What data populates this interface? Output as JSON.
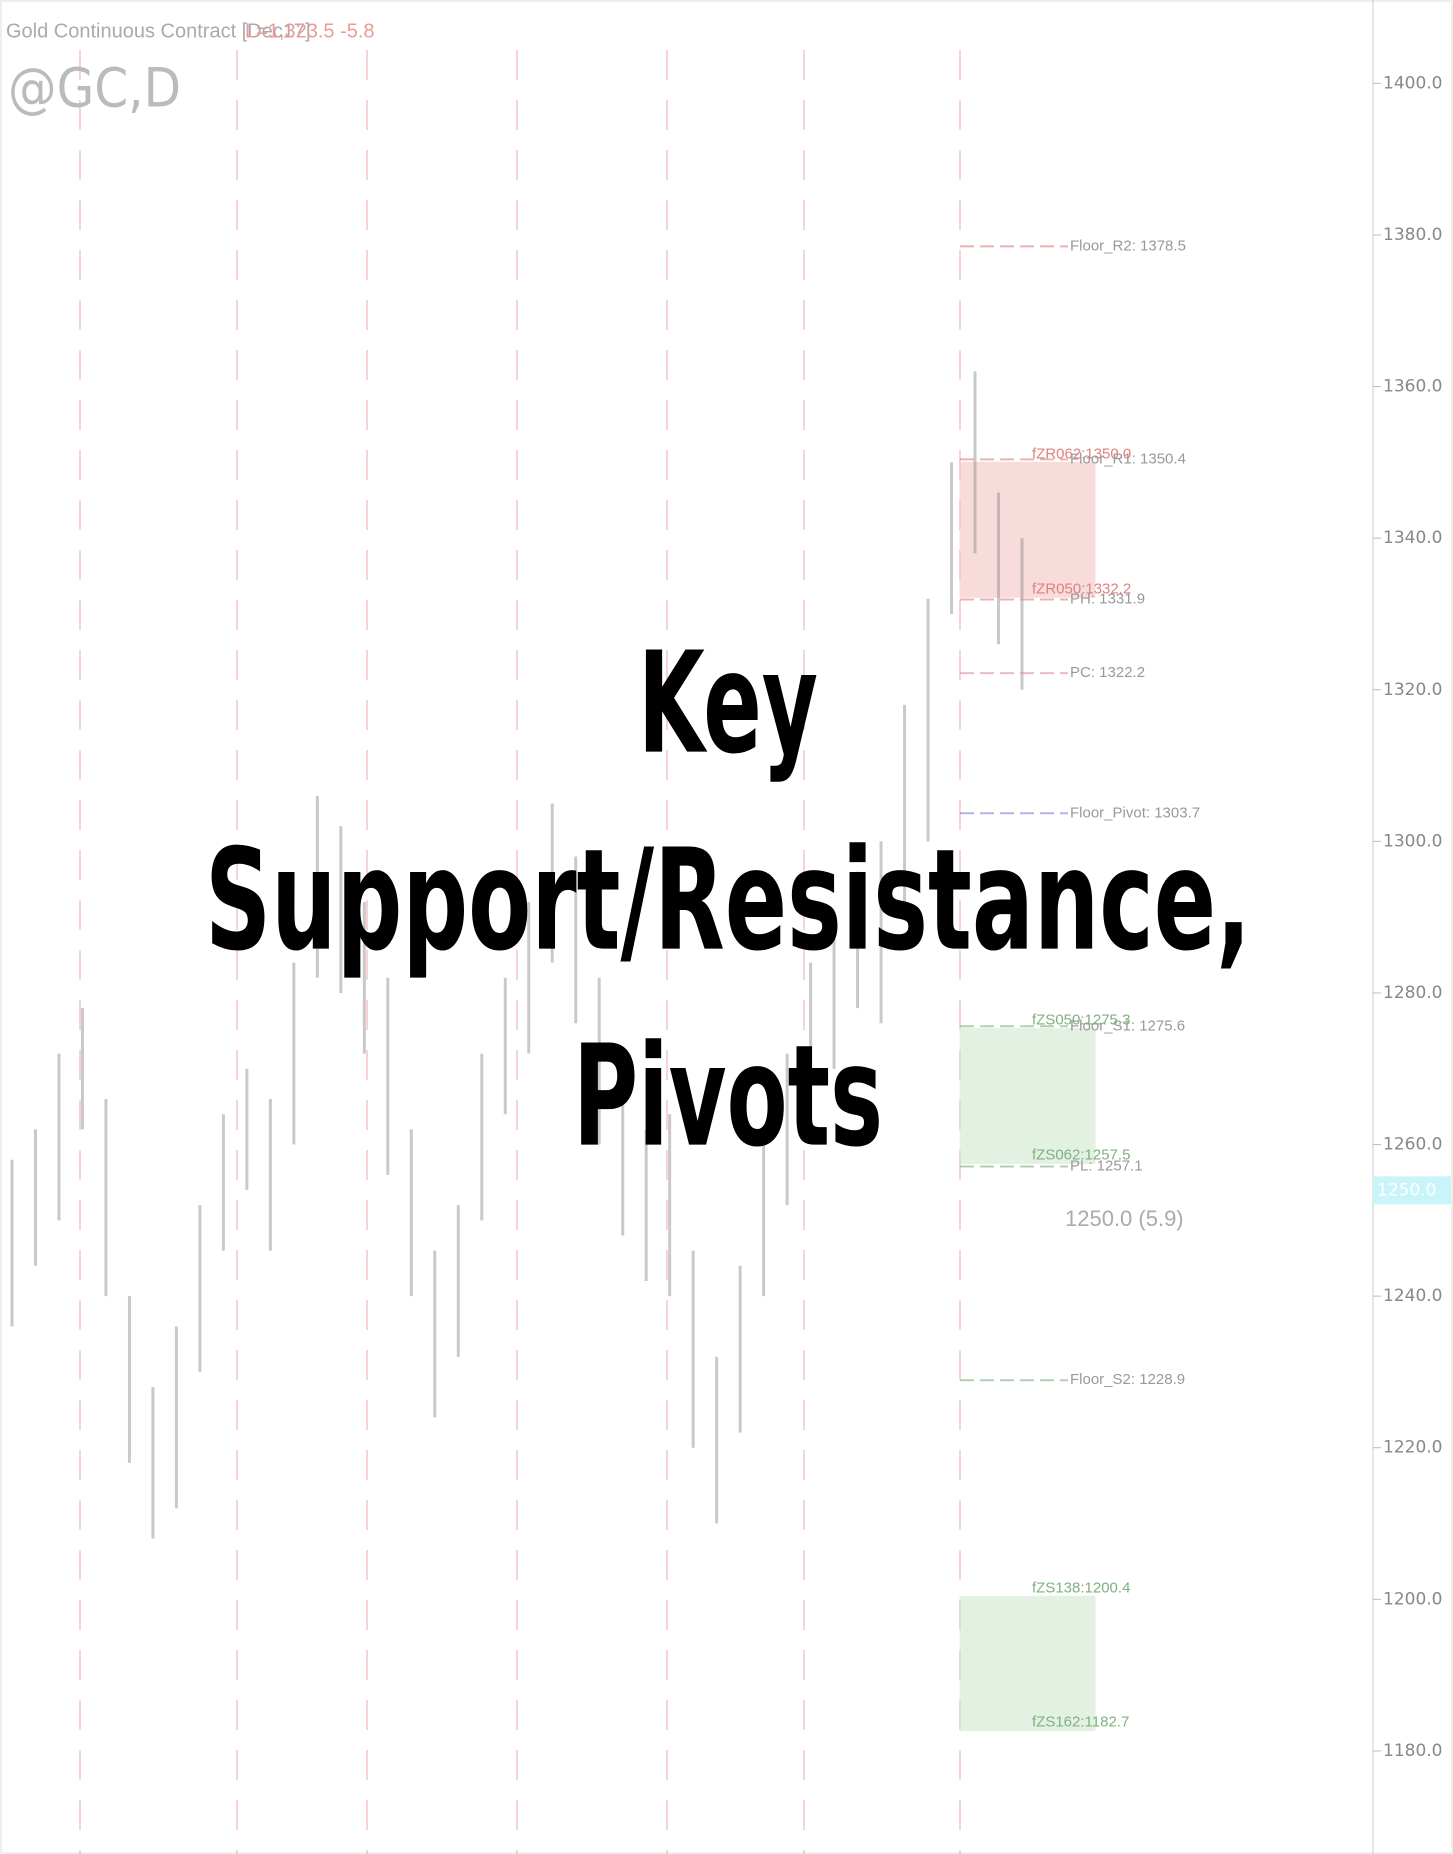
{
  "chart_data": {
    "type": "ohlc",
    "title_lines": [
      "Key",
      "Support/Resistance,",
      "Pivots"
    ],
    "header": "Gold Continuous Contract [Dec17]",
    "last_quote": "L=1,323.5  -5.8",
    "symbol": "@GC,D",
    "price_tag": "1250.0",
    "ylim": [
      1166.4,
      1411
    ],
    "yticks": [
      {
        "value": 1180,
        "label": "1180.0"
      },
      {
        "value": 1200,
        "label": "1200.0"
      },
      {
        "value": 1220,
        "label": "1220.0"
      },
      {
        "value": 1240,
        "label": "1240.0"
      },
      {
        "value": 1260,
        "label": "1260.0"
      },
      {
        "value": 1280,
        "label": "1280.0"
      },
      {
        "value": 1300,
        "label": "1300.0"
      },
      {
        "value": 1320,
        "label": "1320.0"
      },
      {
        "value": 1340,
        "label": "1340.0"
      },
      {
        "value": 1360,
        "label": "1360.0"
      },
      {
        "value": 1380,
        "label": "1380.0"
      },
      {
        "value": 1400,
        "label": "1400.0"
      }
    ],
    "bar_color": "#888888",
    "high": [
      1258,
      1262,
      1272,
      1278,
      1266,
      1240,
      1228,
      1236,
      1252,
      1264,
      1270,
      1266,
      1284,
      1306,
      1302,
      1292,
      1282,
      1262,
      1246,
      1252,
      1272,
      1282,
      1292,
      1305,
      1298,
      1282,
      1268,
      1262,
      1264,
      1246,
      1232,
      1244,
      1262,
      1272,
      1284,
      1290,
      1296,
      1300,
      1318,
      1332,
      1350,
      1362,
      1346,
      1340
    ],
    "low": [
      1236,
      1244,
      1250,
      1262,
      1240,
      1218,
      1208,
      1212,
      1230,
      1246,
      1254,
      1246,
      1260,
      1282,
      1280,
      1272,
      1256,
      1240,
      1224,
      1232,
      1250,
      1264,
      1272,
      1284,
      1276,
      1260,
      1248,
      1242,
      1240,
      1220,
      1210,
      1222,
      1240,
      1252,
      1264,
      1270,
      1278,
      1276,
      1292,
      1300,
      1330,
      1338,
      1326,
      1320
    ],
    "zones": [
      {
        "from": 1332.2,
        "to": 1350.0,
        "color": "#f5c6c6"
      },
      {
        "from": 1257.5,
        "to": 1275.3,
        "color": "#cfe8cf"
      },
      {
        "from": 1182.7,
        "to": 1200.4,
        "color": "#cfe8cf"
      }
    ],
    "annotations": [
      {
        "label": "Floor_R2: 1378.5",
        "value": 1378.5,
        "color": "#e08080",
        "col": "floor"
      },
      {
        "label": "fZR062:1350.0",
        "value": 1350.0,
        "color": "#e08080",
        "col": "zone"
      },
      {
        "label": "Floor_R1: 1350.4",
        "value": 1350.4,
        "color": "#e08080",
        "col": "floor"
      },
      {
        "label": "PH: 1331.9",
        "value": 1331.9,
        "color": "#e08080",
        "col": "floor"
      },
      {
        "label": "fZR050:1332.2",
        "value": 1332.2,
        "color": "#e08080",
        "col": "zone"
      },
      {
        "label": "PC: 1322.2",
        "value": 1322.2,
        "color": "#e08ab0",
        "col": "floor"
      },
      {
        "label": "Floor_Pivot: 1303.7",
        "value": 1303.7,
        "color": "#8080e0",
        "col": "floor"
      },
      {
        "label": "fZS050:1275.3",
        "value": 1275.3,
        "color": "#80b080",
        "col": "zone"
      },
      {
        "label": "Floor_S1: 1275.6",
        "value": 1275.6,
        "color": "#80b080",
        "col": "floor"
      },
      {
        "label": "PL: 1257.1",
        "value": 1257.1,
        "color": "#80b080",
        "col": "floor"
      },
      {
        "label": "fZS062:1257.5",
        "value": 1257.5,
        "color": "#80b080",
        "col": "zone"
      },
      {
        "label": "1250.0 (5.9)",
        "value": 1250.0,
        "color": "#e08ab0",
        "col": "price"
      },
      {
        "label": "Floor_S2: 1228.9",
        "value": 1228.9,
        "color": "#80b080",
        "col": "floor"
      },
      {
        "label": "fZS138:1200.4",
        "value": 1200.4,
        "color": "#80b080",
        "col": "zone"
      },
      {
        "label": "fZS162:1182.7",
        "value": 1182.7,
        "color": "#80b080",
        "col": "zone"
      }
    ]
  }
}
